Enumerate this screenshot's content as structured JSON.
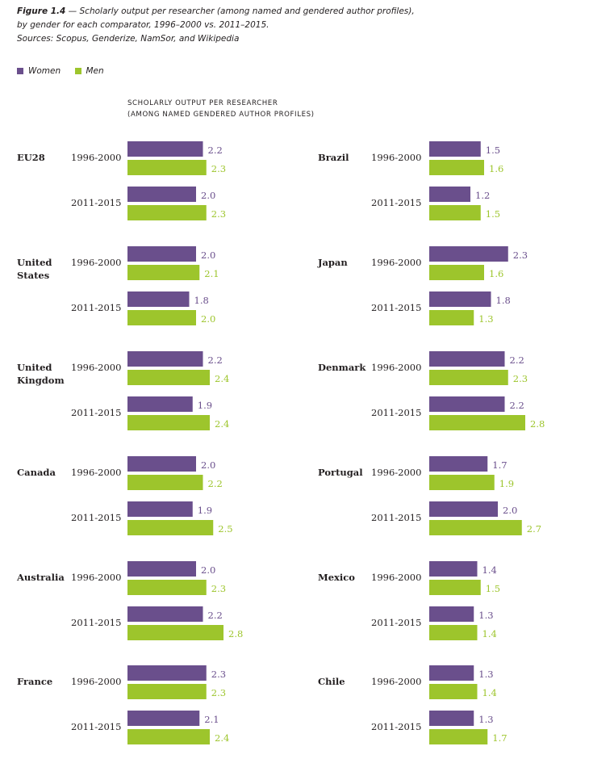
{
  "caption": {
    "figure_label": "Figure 1.4",
    "line1": " — Scholarly output per researcher (among named and gendered author profiles),",
    "line2": "by gender for each comparator, 1996–2000 vs. 2011–2015.",
    "line3": "Sources: Scopus, Genderize, NamSor, and Wikipedia"
  },
  "legend": {
    "women": "Women",
    "men": "Men"
  },
  "axis_title": {
    "line1": "SCHOLARLY OUTPUT PER RESEARCHER",
    "line2": "(AMONG NAMED GENDERED AUTHOR PROFILES)"
  },
  "colors": {
    "women": "#6a4f8c",
    "men": "#9dc52c"
  },
  "chart_data": {
    "type": "bar",
    "orientation": "horizontal",
    "periods": [
      "1996-2000",
      "2011-2015"
    ],
    "series_names": [
      "Women",
      "Men"
    ],
    "xlim": [
      0,
      3
    ],
    "grid": false,
    "legend_position": "top-left",
    "groups": [
      {
        "label": [
          "EU28"
        ],
        "values": {
          "1996-2000": [
            2.2,
            2.3
          ],
          "2011-2015": [
            2.0,
            2.3
          ]
        }
      },
      {
        "label": [
          "United",
          "States"
        ],
        "values": {
          "1996-2000": [
            2.0,
            2.1
          ],
          "2011-2015": [
            1.8,
            2.0
          ]
        }
      },
      {
        "label": [
          "United",
          "Kingdom"
        ],
        "values": {
          "1996-2000": [
            2.2,
            2.4
          ],
          "2011-2015": [
            1.9,
            2.4
          ]
        }
      },
      {
        "label": [
          "Canada"
        ],
        "values": {
          "1996-2000": [
            2.0,
            2.2
          ],
          "2011-2015": [
            1.9,
            2.5
          ]
        }
      },
      {
        "label": [
          "Australia"
        ],
        "values": {
          "1996-2000": [
            2.0,
            2.3
          ],
          "2011-2015": [
            2.2,
            2.8
          ]
        }
      },
      {
        "label": [
          "France"
        ],
        "values": {
          "1996-2000": [
            2.3,
            2.3
          ],
          "2011-2015": [
            2.1,
            2.4
          ]
        }
      },
      {
        "label": [
          "Brazil"
        ],
        "values": {
          "1996-2000": [
            1.5,
            1.6
          ],
          "2011-2015": [
            1.2,
            1.5
          ]
        }
      },
      {
        "label": [
          "Japan"
        ],
        "values": {
          "1996-2000": [
            2.3,
            1.6
          ],
          "2011-2015": [
            1.8,
            1.3
          ]
        }
      },
      {
        "label": [
          "Denmark"
        ],
        "values": {
          "1996-2000": [
            2.2,
            2.3
          ],
          "2011-2015": [
            2.2,
            2.8
          ]
        }
      },
      {
        "label": [
          "Portugal"
        ],
        "values": {
          "1996-2000": [
            1.7,
            1.9
          ],
          "2011-2015": [
            2.0,
            2.7
          ]
        }
      },
      {
        "label": [
          "Mexico"
        ],
        "values": {
          "1996-2000": [
            1.4,
            1.5
          ],
          "2011-2015": [
            1.3,
            1.4
          ]
        }
      },
      {
        "label": [
          "Chile"
        ],
        "values": {
          "1996-2000": [
            1.3,
            1.4
          ],
          "2011-2015": [
            1.3,
            1.7
          ]
        }
      }
    ]
  }
}
